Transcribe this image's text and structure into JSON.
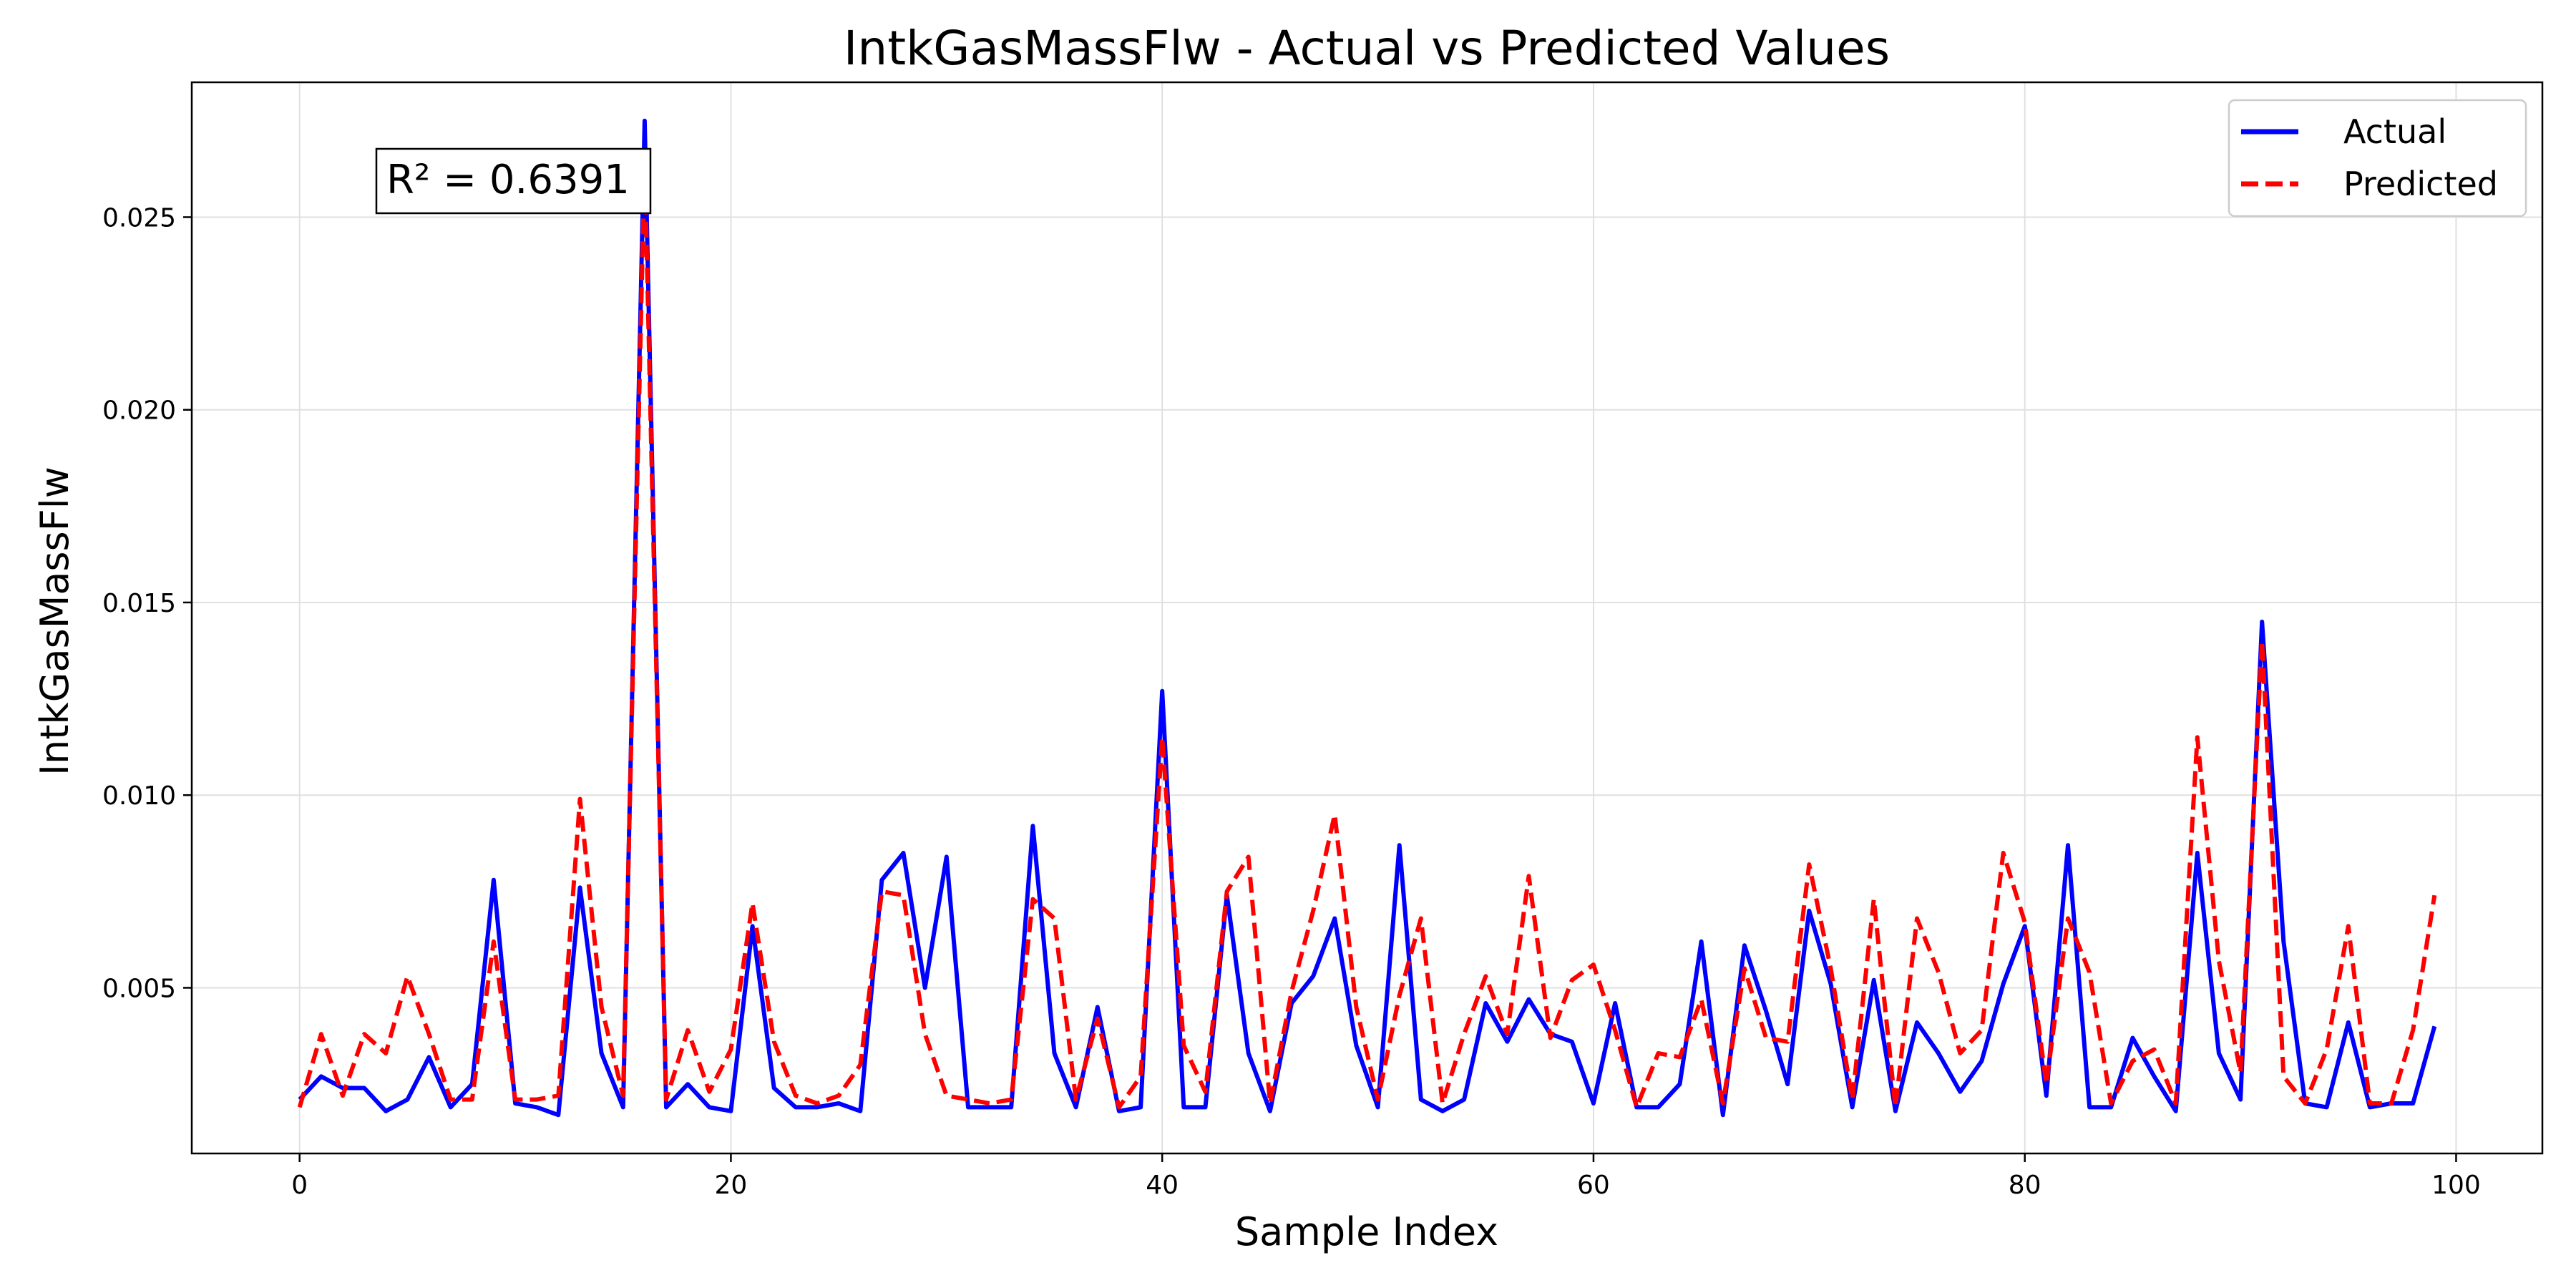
{
  "chart_data": {
    "type": "line",
    "title": "IntkGasMassFlw - Actual vs Predicted Values",
    "xlabel": "Sample Index",
    "ylabel": "IntkGasMassFlw",
    "xlim": [
      -5,
      104
    ],
    "ylim": [
      0.0007,
      0.0285
    ],
    "xticks": [
      0,
      20,
      40,
      60,
      80,
      100
    ],
    "xtick_labels": [
      "0",
      "20",
      "40",
      "60",
      "80",
      "100"
    ],
    "yticks": [
      0.005,
      0.01,
      0.015,
      0.02,
      0.025
    ],
    "ytick_labels": [
      "0.005",
      "0.010",
      "0.015",
      "0.020",
      "0.025"
    ],
    "grid": true,
    "legend_position": "top-right",
    "annotation": "R² = 0.6391",
    "x": [
      0,
      1,
      2,
      3,
      4,
      5,
      6,
      7,
      8,
      9,
      10,
      11,
      12,
      13,
      14,
      15,
      16,
      17,
      18,
      19,
      20,
      21,
      22,
      23,
      24,
      25,
      26,
      27,
      28,
      29,
      30,
      31,
      32,
      33,
      34,
      35,
      36,
      37,
      38,
      39,
      40,
      41,
      42,
      43,
      44,
      45,
      46,
      47,
      48,
      49,
      50,
      51,
      52,
      53,
      54,
      55,
      56,
      57,
      58,
      59,
      60,
      61,
      62,
      63,
      64,
      65,
      66,
      67,
      68,
      69,
      70,
      71,
      72,
      73,
      74,
      75,
      76,
      77,
      78,
      79,
      80,
      81,
      82,
      83,
      84,
      85,
      86,
      87,
      88,
      89,
      90,
      91,
      92,
      93,
      94,
      95,
      96,
      97,
      98,
      99
    ],
    "series": [
      {
        "name": "Actual",
        "color": "#0000ff",
        "style": "solid",
        "values": [
          0.0021,
          0.0027,
          0.0024,
          0.0024,
          0.0018,
          0.0021,
          0.0032,
          0.0019,
          0.0025,
          0.0078,
          0.002,
          0.0019,
          0.0017,
          0.0076,
          0.0033,
          0.0019,
          0.0275,
          0.0019,
          0.0025,
          0.0019,
          0.0018,
          0.0066,
          0.0024,
          0.0019,
          0.0019,
          0.002,
          0.0018,
          0.0078,
          0.0085,
          0.005,
          0.0084,
          0.0019,
          0.0019,
          0.0019,
          0.0092,
          0.0033,
          0.0019,
          0.0045,
          0.0018,
          0.0019,
          0.0127,
          0.0019,
          0.0019,
          0.0074,
          0.0033,
          0.0018,
          0.0046,
          0.0053,
          0.0068,
          0.0035,
          0.0019,
          0.0087,
          0.0021,
          0.0018,
          0.0021,
          0.0046,
          0.0036,
          0.0047,
          0.0038,
          0.0036,
          0.002,
          0.0046,
          0.0019,
          0.0019,
          0.0025,
          0.0062,
          0.0017,
          0.0061,
          0.0044,
          0.0025,
          0.007,
          0.0051,
          0.0019,
          0.0052,
          0.0018,
          0.0041,
          0.0033,
          0.0023,
          0.0031,
          0.0051,
          0.0066,
          0.0022,
          0.0087,
          0.0019,
          0.0019,
          0.0037,
          0.0027,
          0.0018,
          0.0085,
          0.0033,
          0.0021,
          0.0145,
          0.0062,
          0.002,
          0.0019,
          0.0041,
          0.0019,
          0.002,
          0.002,
          0.004
        ]
      },
      {
        "name": "Predicted",
        "color": "#ff0000",
        "style": "dashed",
        "values": [
          0.0019,
          0.0038,
          0.0022,
          0.0038,
          0.0033,
          0.0053,
          0.0038,
          0.0021,
          0.0021,
          0.0062,
          0.0021,
          0.0021,
          0.0022,
          0.0099,
          0.0045,
          0.0022,
          0.0265,
          0.0021,
          0.0039,
          0.0023,
          0.0034,
          0.0072,
          0.0036,
          0.0022,
          0.002,
          0.0022,
          0.003,
          0.0075,
          0.0074,
          0.0038,
          0.0022,
          0.0021,
          0.002,
          0.0021,
          0.0073,
          0.0068,
          0.0021,
          0.0042,
          0.0019,
          0.0027,
          0.0115,
          0.0035,
          0.0023,
          0.0075,
          0.0084,
          0.002,
          0.0049,
          0.007,
          0.0095,
          0.0045,
          0.0021,
          0.0048,
          0.0068,
          0.002,
          0.0038,
          0.0053,
          0.0038,
          0.0079,
          0.0037,
          0.0052,
          0.0056,
          0.0039,
          0.0019,
          0.0033,
          0.0032,
          0.0047,
          0.002,
          0.0055,
          0.0037,
          0.0036,
          0.0082,
          0.0055,
          0.0021,
          0.0073,
          0.0019,
          0.0068,
          0.0054,
          0.0033,
          0.0039,
          0.0085,
          0.0067,
          0.0025,
          0.0068,
          0.0054,
          0.002,
          0.0031,
          0.0034,
          0.002,
          0.0115,
          0.0057,
          0.0028,
          0.014,
          0.0027,
          0.002,
          0.0034,
          0.0066,
          0.002,
          0.002,
          0.0039,
          0.0074
        ]
      }
    ]
  }
}
